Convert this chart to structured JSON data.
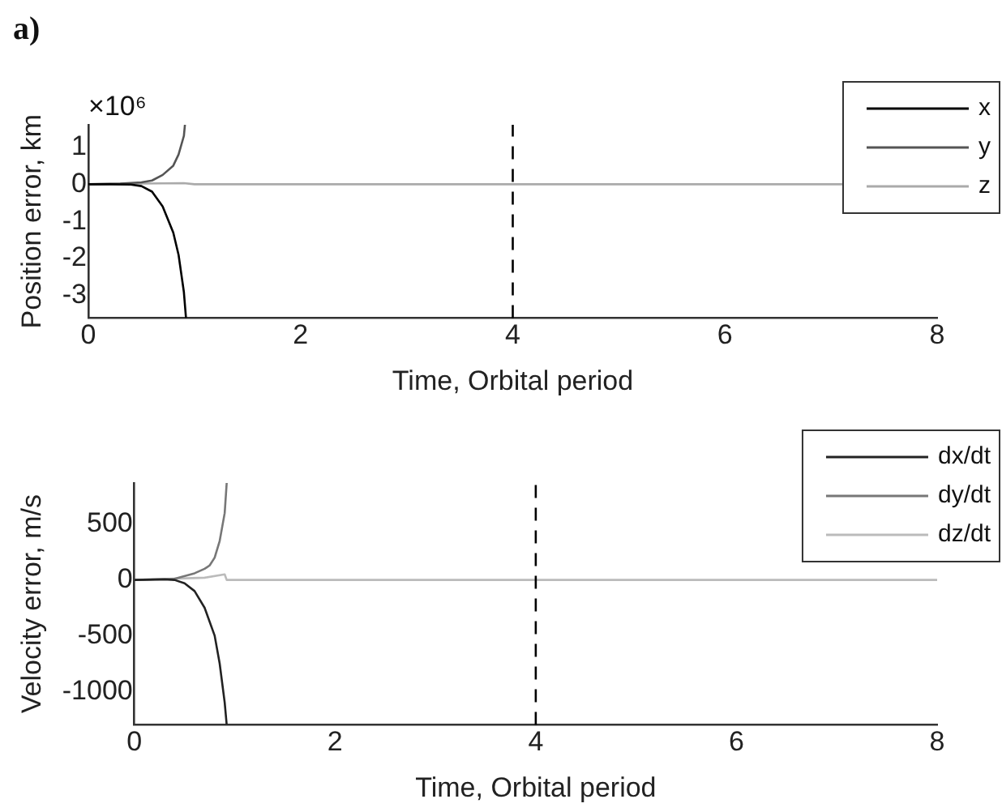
{
  "chart_data": [
    {
      "type": "line",
      "xlabel": "Time, Orbital period",
      "ylabel": "Position error, km",
      "annotations": [
        "a)",
        "×10⁶"
      ],
      "xlim": [
        0,
        8
      ],
      "xticks": [
        0,
        2,
        4,
        6,
        8
      ],
      "ylim": [
        -3.6,
        1.6
      ],
      "yticks": [
        -3,
        -2,
        -1,
        0,
        1
      ],
      "grid": false,
      "legend": "top right",
      "line_style": "solid",
      "marker": "none",
      "ref_lines": [
        {
          "axis": "x",
          "value": 4,
          "color": "#000000",
          "line_style": "dashed"
        }
      ],
      "series": [
        {
          "name": "x",
          "color": "#000000",
          "x": [
            0,
            0.2,
            0.4,
            0.5,
            0.6,
            0.7,
            0.8,
            0.85,
            0.9,
            0.92
          ],
          "values": [
            0,
            0,
            -0.01,
            -0.05,
            -0.2,
            -0.6,
            -1.3,
            -1.9,
            -2.9,
            -3.6
          ]
        },
        {
          "name": "y",
          "color": "#555555",
          "x": [
            0,
            0.3,
            0.5,
            0.6,
            0.7,
            0.8,
            0.85,
            0.9,
            0.91
          ],
          "values": [
            0,
            0.02,
            0.05,
            0.1,
            0.25,
            0.5,
            0.8,
            1.3,
            1.6
          ]
        },
        {
          "name": "z",
          "color": "#aaaaaa",
          "x": [
            0,
            0.5,
            0.9,
            1,
            8
          ],
          "values": [
            0,
            0.02,
            0.03,
            0,
            0
          ]
        }
      ]
    },
    {
      "type": "line",
      "xlabel": "Time, Orbital period",
      "ylabel": "Velocity error, m/s",
      "xlim": [
        0,
        8
      ],
      "xticks": [
        0,
        2,
        4,
        6,
        8
      ],
      "ylim": [
        -1300,
        870
      ],
      "yticks": [
        -1000,
        -500,
        0,
        500
      ],
      "grid": false,
      "legend": "top right",
      "line_style": "solid",
      "marker": "none",
      "ref_lines": [
        {
          "axis": "x",
          "value": 4,
          "color": "#000000",
          "line_style": "dashed"
        }
      ],
      "series": [
        {
          "name": "dx/dt",
          "color": "#222222",
          "x": [
            0,
            0.3,
            0.4,
            0.5,
            0.6,
            0.7,
            0.8,
            0.85,
            0.9,
            0.92
          ],
          "values": [
            0,
            5,
            0,
            -30,
            -100,
            -250,
            -500,
            -750,
            -1100,
            -1300
          ]
        },
        {
          "name": "dy/dt",
          "color": "#777777",
          "x": [
            0,
            0.4,
            0.6,
            0.7,
            0.75,
            0.8,
            0.85,
            0.9,
            0.92
          ],
          "values": [
            0,
            10,
            60,
            100,
            130,
            200,
            350,
            600,
            870
          ]
        },
        {
          "name": "dz/dt",
          "color": "#bbbbbb",
          "x": [
            0,
            0.7,
            0.9,
            0.92,
            8
          ],
          "values": [
            0,
            20,
            50,
            0,
            0
          ]
        }
      ]
    }
  ]
}
